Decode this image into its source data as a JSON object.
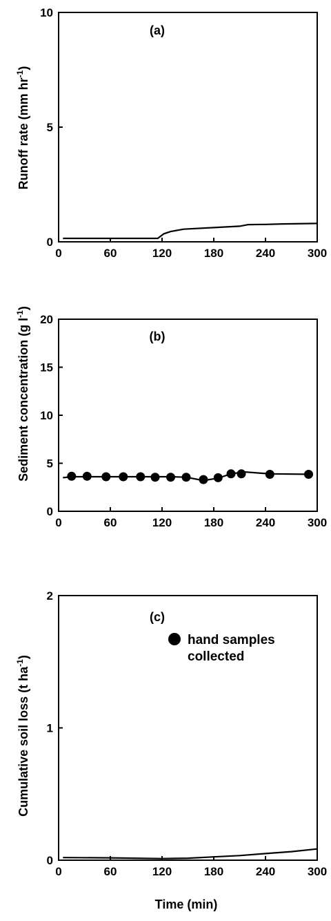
{
  "chart_data": [
    {
      "panel": "(a)",
      "type": "line",
      "xlabel": "",
      "ylabel": "Runoff rate (mm hr",
      "ylabel_sup": "-1",
      "ylabel_tail": ")",
      "xlim": [
        0,
        300
      ],
      "ylim": [
        0,
        10
      ],
      "xticks": [
        0,
        60,
        120,
        180,
        240,
        300
      ],
      "yticks": [
        0,
        5,
        10
      ],
      "series": [
        {
          "style": "line",
          "x": [
            5,
            60,
            115,
            122,
            130,
            145,
            180,
            210,
            220,
            240,
            260,
            300
          ],
          "y": [
            0.15,
            0.15,
            0.15,
            0.35,
            0.45,
            0.55,
            0.62,
            0.68,
            0.75,
            0.76,
            0.78,
            0.8
          ]
        }
      ]
    },
    {
      "panel": "(b)",
      "type": "line",
      "xlabel": "",
      "ylabel": "Sediment concentration (g l",
      "ylabel_sup": "-1",
      "ylabel_tail": ")",
      "xlim": [
        0,
        300
      ],
      "ylim": [
        0,
        20
      ],
      "xticks": [
        0,
        60,
        120,
        180,
        240,
        300
      ],
      "yticks": [
        0,
        5,
        10,
        15,
        20
      ],
      "legend": {
        "label_line1": "hand samples",
        "label_line2": "collected"
      },
      "series": [
        {
          "style": "line",
          "x": [
            5,
            15,
            33,
            55,
            75,
            95,
            112,
            130,
            148,
            168,
            185,
            200,
            215,
            245,
            295
          ],
          "y": [
            3.5,
            3.6,
            3.6,
            3.6,
            3.6,
            3.6,
            3.6,
            3.6,
            3.55,
            3.2,
            3.45,
            3.9,
            4.1,
            3.9,
            3.85
          ]
        },
        {
          "style": "markers",
          "x": [
            15,
            33,
            55,
            75,
            95,
            112,
            130,
            148,
            168,
            185,
            200,
            212,
            245,
            290
          ],
          "y": [
            3.65,
            3.65,
            3.6,
            3.6,
            3.6,
            3.55,
            3.55,
            3.55,
            3.3,
            3.5,
            3.9,
            3.9,
            3.85,
            3.85
          ]
        }
      ]
    },
    {
      "panel": "(c)",
      "type": "line",
      "xlabel": "Time (min)",
      "ylabel": "Cumulative soil loss (t ha",
      "ylabel_sup": "-1",
      "ylabel_tail": ")",
      "xlim": [
        0,
        300
      ],
      "ylim": [
        0,
        2
      ],
      "xticks": [
        0,
        60,
        120,
        180,
        240,
        300
      ],
      "yticks": [
        0,
        1,
        2
      ],
      "series": [
        {
          "style": "line",
          "x": [
            5,
            60,
            120,
            150,
            180,
            210,
            240,
            270,
            300
          ],
          "y": [
            0.02,
            0.018,
            0.012,
            0.015,
            0.025,
            0.035,
            0.05,
            0.065,
            0.085
          ]
        }
      ]
    }
  ]
}
